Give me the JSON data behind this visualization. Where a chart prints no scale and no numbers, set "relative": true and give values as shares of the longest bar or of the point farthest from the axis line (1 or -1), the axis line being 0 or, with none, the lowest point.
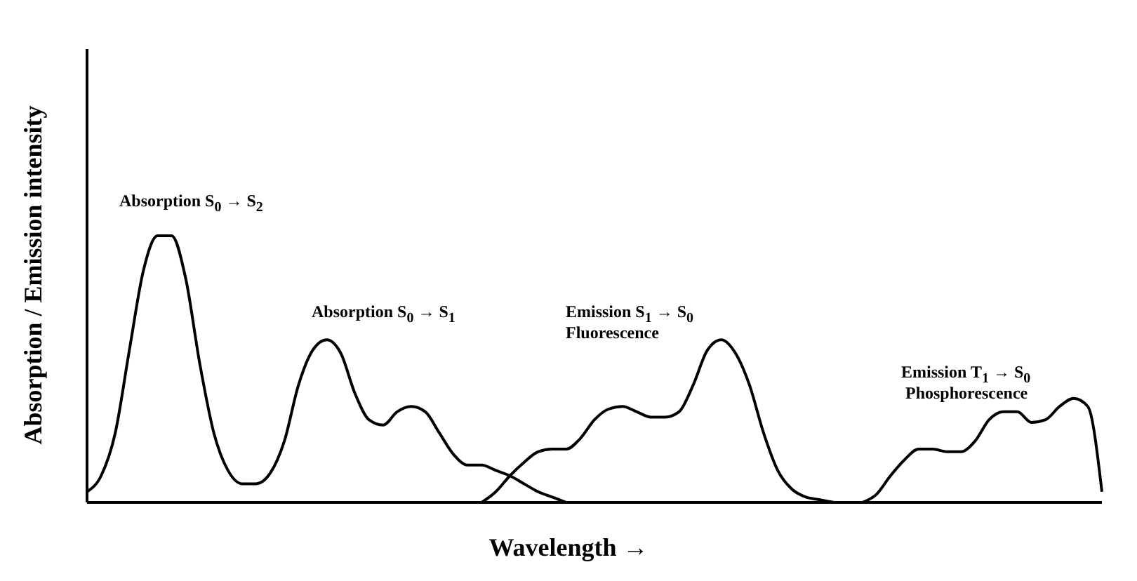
{
  "chart_data": {
    "type": "line",
    "relative": true,
    "tick_labels": false,
    "grid": false,
    "legend": false,
    "xlabel": "Wavelength →",
    "ylabel": "Absorption / Emission intensity",
    "annotations": [
      "Absorption S$_{0}$ → S$_{2}$",
      "Absorption S$_{0}$ → S$_{1}$",
      "Emission S$_{1}$ → S$_{0}$",
      "Fluorescence",
      "Emission T$_{1}$ → S$_{0}$",
      "Phosphorescence"
    ],
    "categories": [
      null,
      null,
      null,
      null,
      null,
      null,
      null,
      null,
      null,
      null,
      null,
      null,
      null,
      null,
      null,
      null,
      null,
      null,
      null,
      null,
      null,
      null,
      null,
      null,
      null,
      null,
      null,
      null,
      null,
      null,
      null,
      null,
      null,
      null,
      null,
      null,
      null,
      null,
      null,
      null,
      null,
      null,
      null,
      null,
      null,
      null,
      null,
      null,
      null,
      null,
      null,
      null,
      null,
      null,
      null,
      null,
      null,
      null,
      null,
      null,
      null,
      null,
      null,
      null,
      null,
      null,
      null,
      null,
      null,
      null,
      null,
      null,
      null
    ],
    "series": [
      {
        "color": "#000000",
        "values": [
          0.04,
          0.1,
          0.26,
          0.57,
          0.87,
          1.0,
          1.0,
          0.84,
          0.52,
          0.26,
          0.12,
          0.07,
          0.07,
          0.11,
          0.23,
          0.44,
          0.57,
          0.61,
          0.56,
          0.41,
          0.31,
          0.29,
          0.34,
          0.36,
          0.34,
          0.26,
          0.18,
          0.14,
          0.14,
          0.12,
          0.1,
          0.07,
          0.04,
          0.02,
          0,
          null,
          null,
          null,
          null,
          null,
          null,
          null,
          null,
          null,
          null,
          null,
          null,
          null,
          null,
          null,
          null,
          null,
          null,
          null,
          null,
          null,
          null,
          null,
          null,
          null,
          null,
          null,
          null,
          null,
          null,
          null,
          null,
          null,
          null,
          null,
          null,
          null,
          null
        ]
      },
      {
        "color": "#000000",
        "values": [
          null,
          null,
          null,
          null,
          null,
          null,
          null,
          null,
          null,
          null,
          null,
          null,
          null,
          null,
          null,
          null,
          null,
          null,
          null,
          null,
          null,
          null,
          null,
          null,
          null,
          null,
          null,
          null,
          0,
          0.04,
          0.1,
          0.15,
          0.19,
          0.2,
          0.2,
          0.24,
          0.31,
          0.35,
          0.36,
          0.34,
          0.32,
          0.32,
          0.34,
          0.44,
          0.57,
          0.61,
          0.56,
          0.44,
          0.26,
          0.12,
          0.05,
          0.02,
          0.01,
          0,
          null,
          null,
          null,
          null,
          null,
          null,
          null,
          null,
          null,
          null,
          null,
          null,
          null,
          null,
          null,
          null,
          null,
          null,
          null
        ]
      },
      {
        "color": "#000000",
        "values": [
          null,
          null,
          null,
          null,
          null,
          null,
          null,
          null,
          null,
          null,
          null,
          null,
          null,
          null,
          null,
          null,
          null,
          null,
          null,
          null,
          null,
          null,
          null,
          null,
          null,
          null,
          null,
          null,
          null,
          null,
          null,
          null,
          null,
          null,
          null,
          null,
          null,
          null,
          null,
          null,
          null,
          null,
          null,
          null,
          null,
          null,
          null,
          null,
          null,
          null,
          null,
          null,
          null,
          null,
          null,
          0,
          0.03,
          0.1,
          0.16,
          0.2,
          0.2,
          0.19,
          0.19,
          0.23,
          0.31,
          0.34,
          0.34,
          0.3,
          0.31,
          0.36,
          0.39,
          0.36,
          0.04
        ]
      }
    ]
  }
}
